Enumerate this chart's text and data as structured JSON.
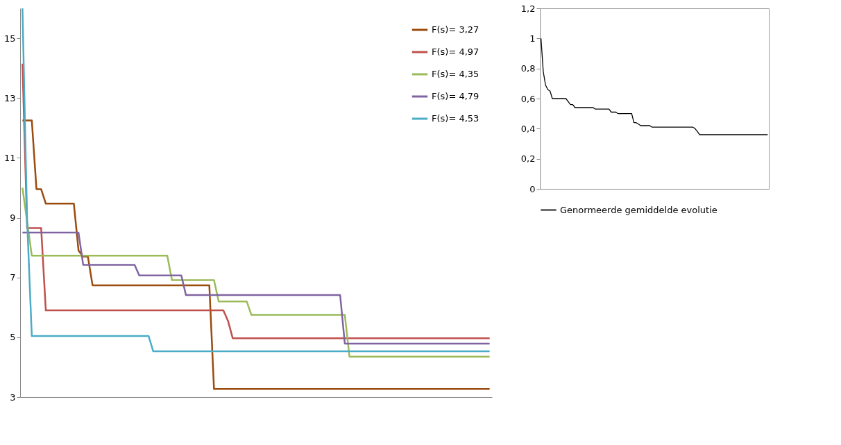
{
  "chart_data": [
    {
      "type": "line",
      "categories": [
        null,
        null,
        null,
        null,
        null,
        null,
        null,
        null,
        null,
        null,
        null,
        null,
        null,
        null,
        null,
        null,
        null,
        null,
        null,
        null,
        null,
        null,
        null,
        null,
        null,
        null,
        null,
        null,
        null,
        null,
        null,
        null,
        null,
        null,
        null,
        null,
        null,
        null,
        null,
        null,
        null,
        null,
        null,
        null,
        null,
        null,
        null,
        null,
        null,
        null,
        null,
        null,
        null,
        null,
        null,
        null,
        null,
        null,
        null,
        null,
        null,
        null,
        null,
        null,
        null,
        null,
        null,
        null,
        null,
        null,
        null,
        null,
        null,
        null,
        null,
        null,
        null,
        null,
        null,
        null,
        null,
        null,
        null,
        null,
        null,
        null,
        null,
        null,
        null,
        null,
        null,
        null,
        null,
        null,
        null,
        null,
        null,
        null,
        null,
        null,
        null
      ],
      "series": [
        {
          "name": "F(s)= 3,27",
          "color": "#9a4b0e",
          "values": [
            12.25,
            12.25,
            12.25,
            9.95,
            9.95,
            9.47,
            9.47,
            9.47,
            9.47,
            9.47,
            9.47,
            9.47,
            7.9,
            7.7,
            7.7,
            6.74,
            6.74,
            6.74,
            6.74,
            6.74,
            6.74,
            6.74,
            6.74,
            6.74,
            6.74,
            6.74,
            6.74,
            6.74,
            6.74,
            6.74,
            6.74,
            6.74,
            6.74,
            6.74,
            6.74,
            6.74,
            6.74,
            6.74,
            6.74,
            6.74,
            6.74,
            3.27,
            3.27,
            3.27,
            3.27,
            3.27,
            3.27,
            3.27,
            3.27,
            3.27,
            3.27,
            3.27,
            3.27,
            3.27,
            3.27,
            3.27,
            3.27,
            3.27,
            3.27,
            3.27,
            3.27,
            3.27,
            3.27,
            3.27,
            3.27,
            3.27,
            3.27,
            3.27,
            3.27,
            3.27,
            3.27,
            3.27,
            3.27,
            3.27,
            3.27,
            3.27,
            3.27,
            3.27,
            3.27,
            3.27,
            3.27,
            3.27,
            3.27,
            3.27,
            3.27,
            3.27,
            3.27,
            3.27,
            3.27,
            3.27,
            3.27,
            3.27,
            3.27,
            3.27,
            3.27,
            3.27,
            3.27,
            3.27,
            3.27,
            3.27,
            3.27
          ]
        },
        {
          "name": "F(s)= 4,97",
          "color": "#c0504d",
          "values": [
            14.15,
            8.65,
            8.65,
            8.65,
            8.65,
            5.9,
            5.9,
            5.9,
            5.9,
            5.9,
            5.9,
            5.9,
            5.9,
            5.9,
            5.9,
            5.9,
            5.9,
            5.9,
            5.9,
            5.9,
            5.9,
            5.9,
            5.9,
            5.9,
            5.9,
            5.9,
            5.9,
            5.9,
            5.9,
            5.9,
            5.9,
            5.9,
            5.9,
            5.9,
            5.9,
            5.9,
            5.9,
            5.9,
            5.9,
            5.9,
            5.9,
            5.9,
            5.9,
            5.9,
            5.55,
            4.97,
            4.97,
            4.97,
            4.97,
            4.97,
            4.97,
            4.97,
            4.97,
            4.97,
            4.97,
            4.97,
            4.97,
            4.97,
            4.97,
            4.97,
            4.97,
            4.97,
            4.97,
            4.97,
            4.97,
            4.97,
            4.97,
            4.97,
            4.97,
            4.97,
            4.97,
            4.97,
            4.97,
            4.97,
            4.97,
            4.97,
            4.97,
            4.97,
            4.97,
            4.97,
            4.97,
            4.97,
            4.97,
            4.97,
            4.97,
            4.97,
            4.97,
            4.97,
            4.97,
            4.97,
            4.97,
            4.97,
            4.97,
            4.97,
            4.97,
            4.97,
            4.97,
            4.97,
            4.97,
            4.97,
            4.97
          ]
        },
        {
          "name": "F(s)= 4,35",
          "color": "#9bbb59",
          "values": [
            10.0,
            8.86,
            7.73,
            7.73,
            7.73,
            7.73,
            7.73,
            7.73,
            7.73,
            7.73,
            7.73,
            7.73,
            7.73,
            7.73,
            7.73,
            7.73,
            7.73,
            7.73,
            7.73,
            7.73,
            7.73,
            7.73,
            7.73,
            7.73,
            7.73,
            7.73,
            7.73,
            7.73,
            7.73,
            7.73,
            7.73,
            7.73,
            6.91,
            6.91,
            6.91,
            6.91,
            6.91,
            6.91,
            6.91,
            6.91,
            6.91,
            6.91,
            6.2,
            6.2,
            6.2,
            6.2,
            6.2,
            6.2,
            6.2,
            5.75,
            5.75,
            5.75,
            5.75,
            5.75,
            5.75,
            5.75,
            5.75,
            5.75,
            5.75,
            5.75,
            5.75,
            5.75,
            5.75,
            5.75,
            5.75,
            5.75,
            5.75,
            5.75,
            5.75,
            5.75,
            4.35,
            4.35,
            4.35,
            4.35,
            4.35,
            4.35,
            4.35,
            4.35,
            4.35,
            4.35,
            4.35,
            4.35,
            4.35,
            4.35,
            4.35,
            4.35,
            4.35,
            4.35,
            4.35,
            4.35,
            4.35,
            4.35,
            4.35,
            4.35,
            4.35,
            4.35,
            4.35,
            4.35,
            4.35,
            4.35,
            4.35
          ]
        },
        {
          "name": "F(s)= 4,79",
          "color": "#8064a2",
          "values": [
            8.5,
            8.5,
            8.5,
            8.5,
            8.5,
            8.5,
            8.5,
            8.5,
            8.5,
            8.5,
            8.5,
            8.5,
            8.5,
            7.42,
            7.42,
            7.42,
            7.42,
            7.42,
            7.42,
            7.42,
            7.42,
            7.42,
            7.42,
            7.42,
            7.42,
            7.07,
            7.07,
            7.07,
            7.07,
            7.07,
            7.07,
            7.07,
            7.07,
            7.07,
            7.07,
            6.41,
            6.41,
            6.41,
            6.41,
            6.41,
            6.41,
            6.41,
            6.41,
            6.41,
            6.41,
            6.41,
            6.41,
            6.41,
            6.41,
            6.41,
            6.41,
            6.41,
            6.41,
            6.41,
            6.41,
            6.41,
            6.41,
            6.41,
            6.41,
            6.41,
            6.41,
            6.41,
            6.41,
            6.41,
            6.41,
            6.41,
            6.41,
            6.41,
            6.41,
            4.79,
            4.79,
            4.79,
            4.79,
            4.79,
            4.79,
            4.79,
            4.79,
            4.79,
            4.79,
            4.79,
            4.79,
            4.79,
            4.79,
            4.79,
            4.79,
            4.79,
            4.79,
            4.79,
            4.79,
            4.79,
            4.79,
            4.79,
            4.79,
            4.79,
            4.79,
            4.79,
            4.79,
            4.79,
            4.79,
            4.79,
            4.79
          ]
        },
        {
          "name": "F(s)= 4,53",
          "color": "#4bacc6",
          "values": [
            16,
            8.9,
            5.04,
            5.04,
            5.04,
            5.04,
            5.04,
            5.04,
            5.04,
            5.04,
            5.04,
            5.04,
            5.04,
            5.04,
            5.04,
            5.04,
            5.04,
            5.04,
            5.04,
            5.04,
            5.04,
            5.04,
            5.04,
            5.04,
            5.04,
            5.04,
            5.04,
            5.04,
            4.53,
            4.53,
            4.53,
            4.53,
            4.53,
            4.53,
            4.53,
            4.53,
            4.53,
            4.53,
            4.53,
            4.53,
            4.53,
            4.53,
            4.53,
            4.53,
            4.53,
            4.53,
            4.53,
            4.53,
            4.53,
            4.53,
            4.53,
            4.53,
            4.53,
            4.53,
            4.53,
            4.53,
            4.53,
            4.53,
            4.53,
            4.53,
            4.53,
            4.53,
            4.53,
            4.53,
            4.53,
            4.53,
            4.53,
            4.53,
            4.53,
            4.53,
            4.53,
            4.53,
            4.53,
            4.53,
            4.53,
            4.53,
            4.53,
            4.53,
            4.53,
            4.53,
            4.53,
            4.53,
            4.53,
            4.53,
            4.53,
            4.53,
            4.53,
            4.53,
            4.53,
            4.53,
            4.53,
            4.53,
            4.53,
            4.53,
            4.53,
            4.53,
            4.53,
            4.53,
            4.53,
            4.53,
            4.53
          ]
        }
      ],
      "ylim": [
        3,
        16
      ],
      "yticks": [
        3,
        5,
        7,
        9,
        11,
        13,
        15
      ],
      "legend": "top right",
      "tick_labels": "y"
    },
    {
      "type": "line",
      "categories": [
        null,
        null,
        null,
        null,
        null,
        null,
        null,
        null,
        null,
        null,
        null,
        null,
        null,
        null,
        null,
        null,
        null,
        null,
        null,
        null,
        null,
        null,
        null,
        null,
        null,
        null,
        null,
        null,
        null,
        null,
        null,
        null,
        null,
        null,
        null,
        null,
        null,
        null,
        null,
        null,
        null,
        null,
        null,
        null,
        null,
        null,
        null,
        null,
        null,
        null,
        null,
        null,
        null,
        null,
        null,
        null,
        null,
        null,
        null,
        null,
        null,
        null,
        null,
        null,
        null,
        null,
        null,
        null,
        null,
        null,
        null,
        null,
        null,
        null,
        null,
        null,
        null,
        null,
        null,
        null,
        null,
        null,
        null,
        null,
        null,
        null,
        null,
        null,
        null,
        null,
        null,
        null,
        null,
        null,
        null,
        null,
        null,
        null,
        null,
        null,
        null
      ],
      "series": [
        {
          "name": "Genormeerde gemiddelde evolutie",
          "color": "#000000",
          "values": [
            1.0,
            0.78,
            0.69,
            0.66,
            0.65,
            0.6,
            0.6,
            0.6,
            0.6,
            0.6,
            0.6,
            0.6,
            0.58,
            0.56,
            0.56,
            0.54,
            0.54,
            0.54,
            0.54,
            0.54,
            0.54,
            0.54,
            0.54,
            0.54,
            0.53,
            0.53,
            0.53,
            0.53,
            0.53,
            0.53,
            0.53,
            0.51,
            0.51,
            0.51,
            0.5,
            0.5,
            0.5,
            0.5,
            0.5,
            0.5,
            0.5,
            0.44,
            0.44,
            0.43,
            0.42,
            0.42,
            0.42,
            0.42,
            0.42,
            0.41,
            0.41,
            0.41,
            0.41,
            0.41,
            0.41,
            0.41,
            0.41,
            0.41,
            0.41,
            0.41,
            0.41,
            0.41,
            0.41,
            0.41,
            0.41,
            0.41,
            0.41,
            0.41,
            0.4,
            0.38,
            0.36,
            0.36,
            0.36,
            0.36,
            0.36,
            0.36,
            0.36,
            0.36,
            0.36,
            0.36,
            0.36,
            0.36,
            0.36,
            0.36,
            0.36,
            0.36,
            0.36,
            0.36,
            0.36,
            0.36,
            0.36,
            0.36,
            0.36,
            0.36,
            0.36,
            0.36,
            0.36,
            0.36,
            0.36,
            0.36,
            0.36
          ]
        }
      ],
      "ylim": [
        0,
        1.2
      ],
      "yticks": [
        0,
        {
          "value": 0.2,
          "label": "0,2"
        },
        {
          "value": 0.4,
          "label": "0,4"
        },
        {
          "value": 0.6,
          "label": "0,6"
        },
        {
          "value": 0.8,
          "label": "0,8"
        },
        1,
        {
          "value": 1.2,
          "label": "1,2"
        }
      ],
      "legend": "bottom",
      "tick_labels": "y"
    }
  ]
}
